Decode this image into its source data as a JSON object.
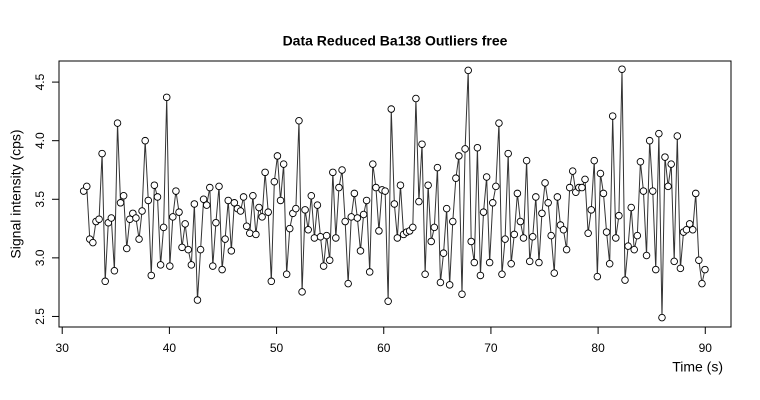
{
  "chart_data": {
    "type": "line",
    "title": "Data Reduced Ba138 Outliers free",
    "x_label": "Time (s)",
    "y_label": "Signal intensity (cps)",
    "line_color": "#333333",
    "marker_stroke": "#000000",
    "marker_fill": "#ffffff",
    "xlim": [
      29.7,
      92.4
    ],
    "ylim": [
      2.41,
      4.68
    ],
    "xticks": [
      30,
      40,
      50,
      60,
      70,
      80,
      90
    ],
    "yticks": [
      2.5,
      {
        "value": 3.0,
        "label": "3.0"
      },
      3.5,
      {
        "value": 4.0,
        "label": "4.0"
      },
      4.5
    ],
    "x": [
      32.0,
      32.29,
      32.57,
      32.86,
      33.15,
      33.44,
      33.72,
      34.01,
      34.3,
      34.58,
      34.87,
      35.16,
      35.44,
      35.73,
      36.02,
      36.31,
      36.59,
      36.88,
      37.17,
      37.45,
      37.74,
      38.03,
      38.31,
      38.6,
      38.89,
      39.18,
      39.46,
      39.75,
      40.04,
      40.32,
      40.61,
      40.9,
      41.18,
      41.47,
      41.76,
      42.05,
      42.33,
      42.62,
      42.91,
      43.19,
      43.48,
      43.77,
      44.05,
      44.34,
      44.63,
      44.92,
      45.2,
      45.49,
      45.78,
      46.06,
      46.35,
      46.64,
      46.92,
      47.21,
      47.5,
      47.79,
      48.07,
      48.36,
      48.65,
      48.93,
      49.22,
      49.51,
      49.79,
      50.08,
      50.37,
      50.66,
      50.94,
      51.23,
      51.52,
      51.8,
      52.09,
      52.38,
      52.66,
      52.95,
      53.24,
      53.53,
      53.81,
      54.1,
      54.39,
      54.67,
      54.96,
      55.25,
      55.53,
      55.82,
      56.11,
      56.4,
      56.68,
      56.97,
      57.26,
      57.54,
      57.83,
      58.12,
      58.4,
      58.69,
      58.98,
      59.27,
      59.55,
      59.84,
      60.13,
      60.41,
      60.7,
      60.99,
      61.27,
      61.56,
      61.85,
      62.14,
      62.42,
      62.71,
      63.0,
      63.28,
      63.57,
      63.86,
      64.14,
      64.43,
      64.72,
      65.01,
      65.29,
      65.58,
      65.87,
      66.15,
      66.44,
      66.73,
      67.01,
      67.3,
      67.59,
      67.88,
      68.16,
      68.45,
      68.74,
      69.02,
      69.31,
      69.6,
      69.88,
      70.17,
      70.46,
      70.75,
      71.03,
      71.32,
      71.61,
      71.89,
      72.18,
      72.47,
      72.75,
      73.04,
      73.33,
      73.62,
      73.9,
      74.19,
      74.48,
      74.76,
      75.05,
      75.34,
      75.62,
      75.91,
      76.2,
      76.49,
      76.77,
      77.06,
      77.35,
      77.63,
      77.92,
      78.21,
      78.49,
      78.78,
      79.07,
      79.36,
      79.64,
      79.93,
      80.22,
      80.5,
      80.79,
      81.08,
      81.36,
      81.65,
      81.94,
      82.23,
      82.51,
      82.8,
      83.09,
      83.37,
      83.66,
      83.95,
      84.23,
      84.52,
      84.81,
      85.1,
      85.38,
      85.67,
      85.96,
      86.24,
      86.53,
      86.82,
      87.1,
      87.39,
      87.68,
      87.97,
      88.25,
      88.54,
      88.83,
      89.11,
      89.4,
      89.69,
      89.97
    ],
    "values": [
      3.57,
      3.61,
      3.16,
      3.13,
      3.31,
      3.33,
      3.89,
      2.8,
      3.3,
      3.34,
      2.89,
      4.15,
      3.47,
      3.53,
      3.08,
      3.33,
      3.38,
      3.34,
      3.16,
      3.4,
      4.0,
      3.49,
      2.85,
      3.62,
      3.52,
      2.94,
      3.26,
      4.37,
      2.93,
      3.35,
      3.57,
      3.39,
      3.09,
      3.29,
      3.07,
      2.94,
      3.46,
      2.64,
      3.07,
      3.5,
      3.45,
      3.6,
      2.93,
      3.3,
      3.61,
      2.9,
      3.16,
      3.49,
      3.06,
      3.47,
      3.42,
      3.4,
      3.52,
      3.27,
      3.21,
      3.53,
      3.2,
      3.43,
      3.35,
      3.73,
      3.39,
      2.8,
      3.65,
      3.87,
      3.49,
      3.8,
      2.86,
      3.25,
      3.38,
      3.42,
      4.17,
      2.71,
      3.41,
      3.24,
      3.53,
      3.17,
      3.45,
      3.18,
      2.93,
      3.19,
      2.98,
      3.73,
      3.17,
      3.6,
      3.75,
      3.31,
      2.78,
      3.35,
      3.55,
      3.34,
      3.06,
      3.37,
      3.49,
      2.88,
      3.8,
      3.6,
      3.23,
      3.58,
      3.57,
      2.63,
      4.27,
      3.46,
      3.17,
      3.62,
      3.2,
      3.22,
      3.23,
      3.26,
      4.36,
      3.48,
      3.97,
      2.86,
      3.62,
      3.14,
      3.26,
      3.77,
      2.79,
      3.04,
      3.42,
      2.77,
      3.31,
      3.68,
      3.87,
      2.69,
      3.93,
      4.6,
      3.14,
      2.96,
      3.94,
      2.85,
      3.39,
      3.69,
      2.96,
      3.47,
      3.61,
      4.15,
      2.86,
      3.16,
      3.89,
      2.95,
      3.2,
      3.55,
      3.31,
      3.17,
      3.83,
      2.97,
      3.18,
      3.52,
      2.96,
      3.38,
      3.64,
      3.47,
      3.19,
      2.87,
      3.52,
      3.28,
      3.24,
      3.07,
      3.6,
      3.74,
      3.56,
      3.6,
      3.6,
      3.67,
      3.21,
      3.41,
      3.83,
      2.84,
      3.72,
      3.55,
      3.22,
      2.95,
      4.21,
      3.17,
      3.36,
      4.61,
      2.81,
      3.1,
      3.43,
      3.07,
      3.19,
      3.82,
      3.57,
      3.02,
      4.0,
      3.57,
      2.9,
      4.06,
      2.49,
      3.86,
      3.61,
      3.8,
      2.97,
      4.04,
      2.91,
      3.22,
      3.24,
      3.29,
      3.24,
      3.55,
      2.98,
      2.78,
      2.9
    ]
  }
}
